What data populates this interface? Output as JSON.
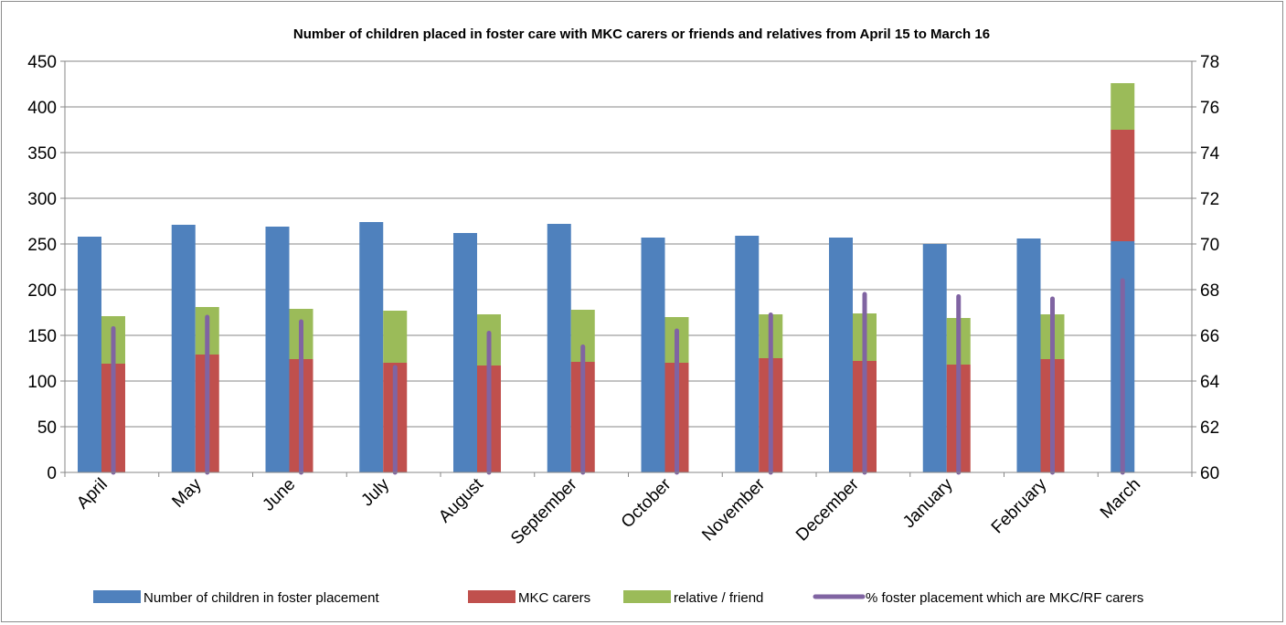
{
  "chart_data": {
    "type": "bar",
    "title": "Number of children placed in foster care with MKC carers or friends and relatives from April 15 to March 16",
    "categories": [
      "April",
      "May",
      "June",
      "July",
      "August",
      "September",
      "October",
      "November",
      "December",
      "January",
      "February",
      "March"
    ],
    "y_left": {
      "ylim": [
        0,
        450
      ],
      "ticks": [
        "0",
        "50",
        "100",
        "150",
        "200",
        "250",
        "300",
        "350",
        "400",
        "450"
      ]
    },
    "y_right": {
      "ylim": [
        60,
        78
      ],
      "ticks": [
        "60",
        "62",
        "64",
        "66",
        "68",
        "70",
        "72",
        "74",
        "76",
        "78"
      ]
    },
    "grid": true,
    "legend_position": "bottom",
    "series": [
      {
        "name": "Number of children in foster placement",
        "kind": "bar",
        "axis": "left",
        "color": "#4f81bd",
        "values": [
          258,
          271,
          269,
          274,
          262,
          272,
          257,
          259,
          257,
          250,
          256,
          253
        ]
      },
      {
        "name": "MKC carers",
        "kind": "stacked-bar",
        "axis": "left",
        "color": "#c0504d",
        "values": [
          119,
          129,
          124,
          120,
          117,
          121,
          120,
          125,
          122,
          118,
          124,
          122
        ]
      },
      {
        "name": "relative / friend",
        "kind": "stacked-bar",
        "axis": "left",
        "color": "#9bbb59",
        "values": [
          52,
          52,
          55,
          57,
          56,
          57,
          50,
          48,
          52,
          51,
          49,
          51
        ]
      },
      {
        "name": "% foster placement which are MKC/RF carers",
        "kind": "line",
        "axis": "right",
        "color": "#8064a2",
        "values": [
          66.3,
          66.8,
          66.6,
          64.6,
          66.1,
          65.5,
          66.2,
          66.9,
          67.8,
          67.7,
          67.6,
          68.4
        ]
      }
    ]
  }
}
